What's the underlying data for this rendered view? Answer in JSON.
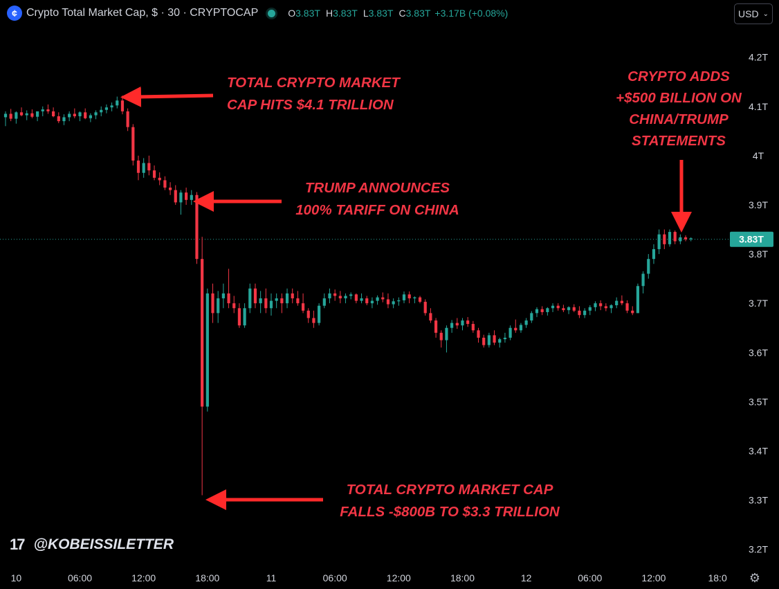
{
  "header": {
    "title": "Crypto Total Market Cap, $ · 30 · CRYPTOCAP",
    "logo_glyph": "¢",
    "open_label": "O",
    "open": "3.83T",
    "high_label": "H",
    "high": "3.83T",
    "low_label": "L",
    "low": "3.83T",
    "close_label": "C",
    "close": "3.83T",
    "change": "+3.17B (+0.08%)"
  },
  "currency": {
    "label": "USD",
    "chevron": "⌄"
  },
  "watermark": {
    "logo": "17",
    "handle": "@KOBEISSILETTER"
  },
  "settings_icon": "⚙",
  "colors": {
    "up": "#26a69a",
    "down": "#f23645",
    "annotation": "#ff2a2a",
    "background": "#000000",
    "text": "#d1d4dc"
  },
  "annotations": [
    {
      "id": "ann-411",
      "lines": [
        "TOTAL CRYPTO MARKET",
        "CAP HITS $4.1 TRILLION"
      ]
    },
    {
      "id": "ann-tariff",
      "lines": [
        "TRUMP ANNOUNCES",
        "100% TARIFF ON CHINA"
      ]
    },
    {
      "id": "ann-crash",
      "lines": [
        "TOTAL CRYPTO MARKET CAP",
        "FALLS -$800B TO $3.3 TRILLION"
      ]
    },
    {
      "id": "ann-rebound",
      "lines": [
        "CRYPTO ADDS",
        "+$500 BILLION ON",
        "CHINA/TRUMP",
        "STATEMENTS"
      ]
    }
  ],
  "chart_data": {
    "type": "candlestick",
    "interval": "30",
    "price_unit": "T",
    "ylim": [
      3.17,
      4.26
    ],
    "y_ticks": [
      3.2,
      3.3,
      3.4,
      3.5,
      3.6,
      3.7,
      3.8,
      3.9,
      4.0,
      4.1,
      4.2
    ],
    "y_tick_labels": [
      "3.2T",
      "3.3T",
      "3.4T",
      "3.5T",
      "3.6T",
      "3.7T",
      "3.8T",
      "3.9T",
      "4T",
      "4.1T",
      "4.2T"
    ],
    "x_ticks": [
      {
        "label": "10",
        "bar": 2
      },
      {
        "label": "06:00",
        "bar": 14
      },
      {
        "label": "12:00",
        "bar": 26
      },
      {
        "label": "18:00",
        "bar": 38
      },
      {
        "label": "11",
        "bar": 50
      },
      {
        "label": "06:00",
        "bar": 62
      },
      {
        "label": "12:00",
        "bar": 74
      },
      {
        "label": "18:00",
        "bar": 86
      },
      {
        "label": "12",
        "bar": 98
      },
      {
        "label": "06:00",
        "bar": 110
      },
      {
        "label": "12:00",
        "bar": 122
      },
      {
        "label": "18:0",
        "bar": 134
      }
    ],
    "last_price": 3.83,
    "last_price_label": "3.83T",
    "candles": [
      [
        4.078,
        4.09,
        4.06,
        4.085
      ],
      [
        4.085,
        4.095,
        4.07,
        4.075
      ],
      [
        4.075,
        4.09,
        4.065,
        4.088
      ],
      [
        4.088,
        4.098,
        4.08,
        4.082
      ],
      [
        4.082,
        4.092,
        4.072,
        4.086
      ],
      [
        4.086,
        4.094,
        4.076,
        4.079
      ],
      [
        4.079,
        4.089,
        4.07,
        4.09
      ],
      [
        4.09,
        4.1,
        4.08,
        4.094
      ],
      [
        4.094,
        4.104,
        4.085,
        4.09
      ],
      [
        4.09,
        4.098,
        4.078,
        4.08
      ],
      [
        4.08,
        4.088,
        4.066,
        4.07
      ],
      [
        4.07,
        4.084,
        4.062,
        4.078
      ],
      [
        4.078,
        4.09,
        4.07,
        4.085
      ],
      [
        4.085,
        4.096,
        4.076,
        4.08
      ],
      [
        4.08,
        4.09,
        4.07,
        4.088
      ],
      [
        4.088,
        4.096,
        4.074,
        4.076
      ],
      [
        4.076,
        4.086,
        4.068,
        4.082
      ],
      [
        4.082,
        4.092,
        4.074,
        4.088
      ],
      [
        4.088,
        4.1,
        4.08,
        4.093
      ],
      [
        4.093,
        4.104,
        4.086,
        4.098
      ],
      [
        4.098,
        4.108,
        4.09,
        4.102
      ],
      [
        4.102,
        4.12,
        4.096,
        4.112
      ],
      [
        4.112,
        4.122,
        4.084,
        4.09
      ],
      [
        4.09,
        4.096,
        4.05,
        4.058
      ],
      [
        4.058,
        4.064,
        3.98,
        3.99
      ],
      [
        3.99,
        4.0,
        3.95,
        3.965
      ],
      [
        3.965,
        3.995,
        3.955,
        3.985
      ],
      [
        3.985,
        4.0,
        3.96,
        3.97
      ],
      [
        3.97,
        3.98,
        3.95,
        3.955
      ],
      [
        3.955,
        3.966,
        3.94,
        3.95
      ],
      [
        3.95,
        3.958,
        3.93,
        3.935
      ],
      [
        3.935,
        3.946,
        3.92,
        3.93
      ],
      [
        3.93,
        3.94,
        3.9,
        3.905
      ],
      [
        3.905,
        3.93,
        3.88,
        3.925
      ],
      [
        3.925,
        3.935,
        3.9,
        3.91
      ],
      [
        3.91,
        3.93,
        3.9,
        3.92
      ],
      [
        3.92,
        3.926,
        3.78,
        3.79
      ],
      [
        3.79,
        3.835,
        3.31,
        3.49
      ],
      [
        3.49,
        3.73,
        3.48,
        3.72
      ],
      [
        3.72,
        3.74,
        3.66,
        3.68
      ],
      [
        3.68,
        3.725,
        3.66,
        3.71
      ],
      [
        3.71,
        3.74,
        3.69,
        3.72
      ],
      [
        3.72,
        3.77,
        3.69,
        3.7
      ],
      [
        3.7,
        3.715,
        3.68,
        3.69
      ],
      [
        3.69,
        3.7,
        3.65,
        3.655
      ],
      [
        3.655,
        3.7,
        3.65,
        3.69
      ],
      [
        3.69,
        3.74,
        3.68,
        3.73
      ],
      [
        3.73,
        3.74,
        3.69,
        3.7
      ],
      [
        3.7,
        3.725,
        3.68,
        3.71
      ],
      [
        3.71,
        3.73,
        3.68,
        3.69
      ],
      [
        3.69,
        3.72,
        3.675,
        3.705
      ],
      [
        3.705,
        3.72,
        3.69,
        3.71
      ],
      [
        3.71,
        3.72,
        3.68,
        3.7
      ],
      [
        3.7,
        3.73,
        3.69,
        3.72
      ],
      [
        3.72,
        3.73,
        3.7,
        3.71
      ],
      [
        3.71,
        3.725,
        3.695,
        3.7
      ],
      [
        3.7,
        3.72,
        3.68,
        3.685
      ],
      [
        3.685,
        3.69,
        3.66,
        3.67
      ],
      [
        3.67,
        3.685,
        3.65,
        3.66
      ],
      [
        3.66,
        3.7,
        3.655,
        3.695
      ],
      [
        3.695,
        3.72,
        3.69,
        3.71
      ],
      [
        3.71,
        3.73,
        3.7,
        3.72
      ],
      [
        3.72,
        3.728,
        3.705,
        3.715
      ],
      [
        3.715,
        3.725,
        3.7,
        3.71
      ],
      [
        3.71,
        3.72,
        3.7,
        3.715
      ],
      [
        3.715,
        3.722,
        3.708,
        3.718
      ],
      [
        3.718,
        3.72,
        3.7,
        3.705
      ],
      [
        3.705,
        3.72,
        3.7,
        3.71
      ],
      [
        3.71,
        3.715,
        3.696,
        3.7
      ],
      [
        3.7,
        3.712,
        3.69,
        3.705
      ],
      [
        3.705,
        3.716,
        3.697,
        3.712
      ],
      [
        3.712,
        3.722,
        3.702,
        3.708
      ],
      [
        3.708,
        3.72,
        3.69,
        3.698
      ],
      [
        3.698,
        3.71,
        3.69,
        3.704
      ],
      [
        3.704,
        3.712,
        3.695,
        3.706
      ],
      [
        3.706,
        3.724,
        3.7,
        3.718
      ],
      [
        3.718,
        3.724,
        3.7,
        3.71
      ],
      [
        3.71,
        3.714,
        3.7,
        3.712
      ],
      [
        3.712,
        3.715,
        3.7,
        3.703
      ],
      [
        3.703,
        3.708,
        3.675,
        3.68
      ],
      [
        3.68,
        3.69,
        3.66,
        3.665
      ],
      [
        3.665,
        3.67,
        3.63,
        3.64
      ],
      [
        3.64,
        3.645,
        3.61,
        3.625
      ],
      [
        3.625,
        3.655,
        3.6,
        3.65
      ],
      [
        3.65,
        3.666,
        3.64,
        3.66
      ],
      [
        3.66,
        3.67,
        3.648,
        3.655
      ],
      [
        3.655,
        3.67,
        3.645,
        3.665
      ],
      [
        3.665,
        3.672,
        3.652,
        3.658
      ],
      [
        3.658,
        3.664,
        3.64,
        3.645
      ],
      [
        3.645,
        3.65,
        3.62,
        3.63
      ],
      [
        3.63,
        3.636,
        3.61,
        3.615
      ],
      [
        3.615,
        3.64,
        3.61,
        3.635
      ],
      [
        3.635,
        3.645,
        3.615,
        3.62
      ],
      [
        3.62,
        3.63,
        3.61,
        3.627
      ],
      [
        3.627,
        3.64,
        3.62,
        3.63
      ],
      [
        3.63,
        3.655,
        3.625,
        3.65
      ],
      [
        3.65,
        3.667,
        3.64,
        3.645
      ],
      [
        3.645,
        3.66,
        3.64,
        3.656
      ],
      [
        3.656,
        3.67,
        3.65,
        3.665
      ],
      [
        3.665,
        3.684,
        3.66,
        3.68
      ],
      [
        3.68,
        3.692,
        3.672,
        3.688
      ],
      [
        3.688,
        3.694,
        3.676,
        3.682
      ],
      [
        3.682,
        3.692,
        3.675,
        3.69
      ],
      [
        3.69,
        3.7,
        3.682,
        3.695
      ],
      [
        3.695,
        3.7,
        3.685,
        3.69
      ],
      [
        3.69,
        3.697,
        3.682,
        3.686
      ],
      [
        3.686,
        3.694,
        3.678,
        3.692
      ],
      [
        3.692,
        3.698,
        3.682,
        3.685
      ],
      [
        3.685,
        3.694,
        3.67,
        3.676
      ],
      [
        3.676,
        3.69,
        3.67,
        3.685
      ],
      [
        3.685,
        3.696,
        3.676,
        3.692
      ],
      [
        3.692,
        3.704,
        3.684,
        3.7
      ],
      [
        3.7,
        3.706,
        3.686,
        3.694
      ],
      [
        3.694,
        3.7,
        3.684,
        3.69
      ],
      [
        3.69,
        3.698,
        3.68,
        3.696
      ],
      [
        3.696,
        3.712,
        3.69,
        3.705
      ],
      [
        3.705,
        3.716,
        3.696,
        3.7
      ],
      [
        3.7,
        3.706,
        3.68,
        3.685
      ],
      [
        3.685,
        3.694,
        3.676,
        3.68
      ],
      [
        3.68,
        3.74,
        3.68,
        3.735
      ],
      [
        3.735,
        3.765,
        3.72,
        3.76
      ],
      [
        3.76,
        3.8,
        3.75,
        3.79
      ],
      [
        3.79,
        3.82,
        3.78,
        3.81
      ],
      [
        3.81,
        3.85,
        3.8,
        3.84
      ],
      [
        3.84,
        3.85,
        3.81,
        3.82
      ],
      [
        3.82,
        3.85,
        3.815,
        3.845
      ],
      [
        3.845,
        3.848,
        3.82,
        3.826
      ],
      [
        3.826,
        3.84,
        3.82,
        3.834
      ],
      [
        3.834,
        3.838,
        3.826,
        3.83
      ],
      [
        3.83,
        3.834,
        3.826,
        3.832
      ]
    ]
  }
}
